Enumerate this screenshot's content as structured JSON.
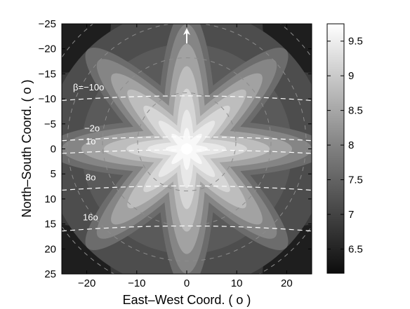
{
  "chart_data": {
    "type": "heatmap",
    "title": "",
    "xlabel": "East–West Coord. ( o )",
    "ylabel": "North–South Coord. ( o )",
    "xlim": [
      -25,
      25
    ],
    "ylim": [
      -25,
      25
    ],
    "y_axis_reversed": true,
    "x_ticks": [
      "−20",
      "−10",
      "0",
      "10",
      "20"
    ],
    "x_tick_values": [
      -20,
      -10,
      0,
      10,
      20
    ],
    "y_ticks": [
      "−25",
      "−20",
      "−15",
      "−10",
      "−5",
      "0",
      "5",
      "10",
      "15",
      "20",
      "25"
    ],
    "y_tick_values": [
      -25,
      -20,
      -15,
      -10,
      -5,
      0,
      5,
      10,
      15,
      20,
      25
    ],
    "colormap": "gray",
    "colorbar": {
      "range": [
        6.15,
        9.75
      ],
      "ticks": [
        "6.5",
        "7",
        "7.5",
        "8",
        "8.5",
        "9",
        "9.5"
      ],
      "tick_values": [
        6.5,
        7,
        7.5,
        8,
        8.5,
        9,
        9.5
      ]
    },
    "pattern": "8-lobed contour pattern centered at origin, maximum ~9.7 along lobes, minimum ~6.2 between lobes",
    "beta_curves": [
      {
        "label": "β=−10o",
        "y_at_center": -10.6
      },
      {
        "label": "−2o",
        "y_at_center": -2.4
      },
      {
        "label": "1o",
        "y_at_center": 0.2
      },
      {
        "label": "8o",
        "y_at_center": 7.4
      },
      {
        "label": "16o",
        "y_at_center": 15.4
      }
    ],
    "annotations": [
      "north arrow at top center"
    ],
    "grid": false,
    "legend": "colorbar right"
  }
}
